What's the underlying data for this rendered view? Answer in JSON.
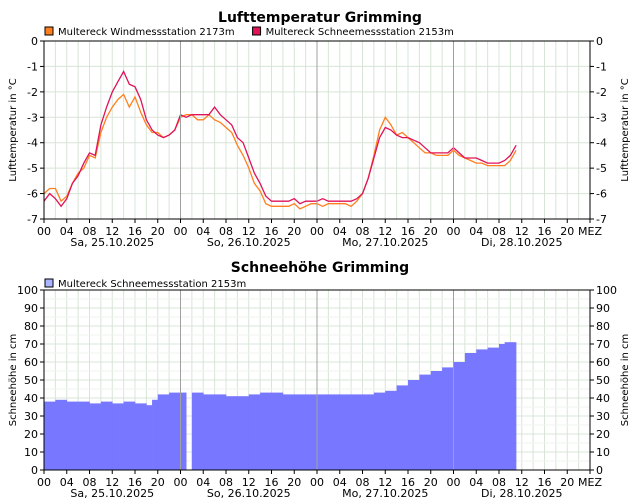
{
  "colors": {
    "windmess": "#ff7f1e",
    "schneemess": "#e0125a",
    "snow_fill": "#7777ff",
    "snow_legend": "#aab4ff",
    "grid": "#d8e4d8",
    "day_line": "#a0a0a0"
  },
  "chart_data": [
    {
      "type": "line",
      "title": "Lufttemperatur    Grimming",
      "ylabel": "Lufttemperatur in °C",
      "ylim": [
        -7,
        0
      ],
      "yticks": [
        "0",
        "-1",
        "-2",
        "-3",
        "-4",
        "-5",
        "-6",
        "-7"
      ],
      "xlim_hours": [
        0,
        96
      ],
      "xtick_labels": [
        "00",
        "04",
        "08",
        "12",
        "16",
        "20",
        "00",
        "04",
        "08",
        "12",
        "16",
        "20",
        "00",
        "04",
        "08",
        "12",
        "16",
        "20",
        "00",
        "04",
        "08",
        "12",
        "16",
        "20",
        "MEZ"
      ],
      "day_labels": [
        "Sa, 25.10.2025",
        "So, 26.10.2025",
        "Mo, 27.10.2025",
        "Di, 28.10.2025"
      ],
      "grid": true,
      "legend_position": "top-left",
      "series": [
        {
          "name": "Multereck Windmessstation   2173m",
          "color": "#ff7f1e",
          "x": [
            0,
            1,
            2,
            3,
            4,
            5,
            6,
            7,
            8,
            9,
            10,
            11,
            12,
            13,
            14,
            15,
            16,
            17,
            18,
            19,
            20,
            21,
            22,
            23,
            24,
            25,
            26,
            27,
            28,
            29,
            30,
            31,
            32,
            33,
            34,
            35,
            36,
            37,
            38,
            39,
            40,
            41,
            42,
            43,
            44,
            45,
            46,
            47,
            48,
            49,
            50,
            51,
            52,
            53,
            54,
            55,
            56,
            57,
            58,
            59,
            60,
            61,
            62,
            63,
            64,
            65,
            66,
            67,
            68,
            69,
            70,
            71,
            72,
            73,
            74,
            75,
            76,
            77,
            78,
            79,
            80,
            81,
            82,
            83
          ],
          "y": [
            -6.0,
            -5.8,
            -5.8,
            -6.3,
            -6.1,
            -5.6,
            -5.2,
            -5.0,
            -4.5,
            -4.6,
            -3.6,
            -3.0,
            -2.6,
            -2.3,
            -2.1,
            -2.6,
            -2.2,
            -2.8,
            -3.3,
            -3.6,
            -3.6,
            -3.8,
            -3.7,
            -3.5,
            -3.0,
            -2.9,
            -2.9,
            -3.1,
            -3.1,
            -2.9,
            -3.1,
            -3.2,
            -3.4,
            -3.6,
            -4.1,
            -4.5,
            -5.0,
            -5.6,
            -5.9,
            -6.4,
            -6.5,
            -6.5,
            -6.5,
            -6.5,
            -6.4,
            -6.6,
            -6.5,
            -6.4,
            -6.4,
            -6.5,
            -6.4,
            -6.4,
            -6.4,
            -6.4,
            -6.5,
            -6.3,
            -6.0,
            -5.4,
            -4.5,
            -3.5,
            -3.0,
            -3.3,
            -3.7,
            -3.6,
            -3.8,
            -4.0,
            -4.2,
            -4.4,
            -4.4,
            -4.5,
            -4.5,
            -4.5,
            -4.3,
            -4.5,
            -4.6,
            -4.7,
            -4.8,
            -4.8,
            -4.9,
            -4.9,
            -4.9,
            -4.9,
            -4.7,
            -4.3
          ]
        },
        {
          "name": "Multereck Schneemessstation   2153m",
          "color": "#e0125a",
          "x": [
            0,
            1,
            2,
            3,
            4,
            5,
            6,
            7,
            8,
            9,
            10,
            11,
            12,
            13,
            14,
            15,
            16,
            17,
            18,
            19,
            20,
            21,
            22,
            23,
            24,
            25,
            26,
            27,
            28,
            29,
            30,
            31,
            32,
            33,
            34,
            35,
            36,
            37,
            38,
            39,
            40,
            41,
            42,
            43,
            44,
            45,
            46,
            47,
            48,
            49,
            50,
            51,
            52,
            53,
            54,
            55,
            56,
            57,
            58,
            59,
            60,
            61,
            62,
            63,
            64,
            65,
            66,
            67,
            68,
            69,
            70,
            71,
            72,
            73,
            74,
            75,
            76,
            77,
            78,
            79,
            80,
            81,
            82,
            83
          ],
          "y": [
            -6.3,
            -6.0,
            -6.2,
            -6.5,
            -6.2,
            -5.6,
            -5.3,
            -4.8,
            -4.4,
            -4.5,
            -3.3,
            -2.6,
            -2.0,
            -1.6,
            -1.2,
            -1.7,
            -1.8,
            -2.3,
            -3.1,
            -3.5,
            -3.7,
            -3.8,
            -3.7,
            -3.5,
            -2.9,
            -3.0,
            -2.9,
            -2.9,
            -2.9,
            -2.9,
            -2.6,
            -2.9,
            -3.1,
            -3.3,
            -3.8,
            -4.0,
            -4.6,
            -5.2,
            -5.6,
            -6.1,
            -6.3,
            -6.3,
            -6.3,
            -6.3,
            -6.2,
            -6.4,
            -6.3,
            -6.3,
            -6.3,
            -6.2,
            -6.3,
            -6.3,
            -6.3,
            -6.3,
            -6.3,
            -6.2,
            -6.0,
            -5.4,
            -4.6,
            -3.8,
            -3.4,
            -3.5,
            -3.7,
            -3.8,
            -3.8,
            -3.9,
            -4.0,
            -4.2,
            -4.4,
            -4.4,
            -4.4,
            -4.4,
            -4.2,
            -4.4,
            -4.6,
            -4.6,
            -4.6,
            -4.7,
            -4.8,
            -4.8,
            -4.8,
            -4.7,
            -4.5,
            -4.1
          ]
        }
      ]
    },
    {
      "type": "area",
      "title": "Schneehöhe    Grimming",
      "ylabel": "Schneehöhe in cm",
      "ylim": [
        0,
        100
      ],
      "yticks": [
        "100",
        "90",
        "80",
        "70",
        "60",
        "50",
        "40",
        "30",
        "20",
        "10",
        "0"
      ],
      "xlim_hours": [
        0,
        96
      ],
      "xtick_labels": [
        "00",
        "04",
        "08",
        "12",
        "16",
        "20",
        "00",
        "04",
        "08",
        "12",
        "16",
        "20",
        "00",
        "04",
        "08",
        "12",
        "16",
        "20",
        "00",
        "04",
        "08",
        "12",
        "16",
        "20",
        "MEZ"
      ],
      "day_labels": [
        "Sa, 25.10.2025",
        "So, 26.10.2025",
        "Mo, 27.10.2025",
        "Di, 28.10.2025"
      ],
      "grid": true,
      "legend_position": "top-left",
      "series": [
        {
          "name": "Multereck Schneemessstation   2153m",
          "color": "#7777ff",
          "x": [
            0,
            2,
            4,
            6,
            8,
            10,
            12,
            14,
            16,
            18,
            19,
            20,
            22,
            24,
            25,
            26,
            27,
            28,
            30,
            32,
            34,
            36,
            38,
            40,
            42,
            44,
            46,
            48,
            50,
            52,
            54,
            56,
            58,
            60,
            62,
            64,
            66,
            68,
            70,
            72,
            74,
            76,
            78,
            80,
            81,
            82,
            83
          ],
          "y": [
            38,
            39,
            38,
            38,
            37,
            38,
            37,
            38,
            37,
            36,
            39,
            42,
            43,
            43,
            0,
            43,
            43,
            42,
            42,
            41,
            41,
            42,
            43,
            43,
            42,
            42,
            42,
            42,
            42,
            42,
            42,
            42,
            43,
            44,
            47,
            50,
            53,
            55,
            57,
            60,
            65,
            67,
            68,
            70,
            71,
            71,
            71
          ]
        }
      ]
    }
  ]
}
